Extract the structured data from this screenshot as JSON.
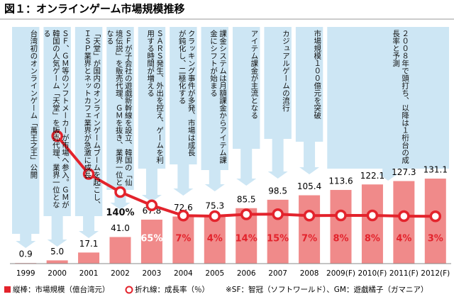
{
  "chart_data": {
    "type": "bar_line",
    "title": "図１：オンラインゲーム市場規模推移",
    "categories": [
      "1999",
      "2000",
      "2001",
      "2002",
      "2003",
      "2004",
      "2005",
      "2006",
      "2007",
      "2008",
      "2009(F)",
      "2010(F)",
      "2011(F)",
      "2012(F)"
    ],
    "series": [
      {
        "name": "縦棒：市場規模（億台湾元）",
        "type": "bar",
        "color": "#f08a8a",
        "values": [
          0.9,
          5.0,
          17.1,
          41.0,
          67.8,
          72.6,
          75.3,
          85.5,
          98.5,
          105.4,
          113.6,
          122.1,
          127.3,
          131.1
        ],
        "value_labels": [
          "0.9",
          "5.0",
          "17.1",
          "41.0",
          "67.8",
          "72.6",
          "75.3",
          "85.5",
          "98.5",
          "105.4",
          "113.6",
          "122.1",
          "127.3",
          "131.1"
        ]
      },
      {
        "name": "折れ線：成長率（％）",
        "type": "line",
        "color": "#e3232c",
        "values": [
          null,
          456,
          242,
          140,
          65,
          7,
          4,
          14,
          15,
          7,
          8,
          8,
          4,
          3
        ],
        "value_labels": [
          null,
          null,
          null,
          "140%",
          "65%",
          "7%",
          "4%",
          "14%",
          "15%",
          "7%",
          "8%",
          "8%",
          "4%",
          "3%"
        ]
      }
    ],
    "annotations": [
      "台湾初のオンラインゲーム「萬王之王」公開",
      "ＳＦ、ＧＭ等のソフトメーカーが市場へ参入。ＧＭが韓国の人気ゲーム「天堂」を販売代理、業界一位となる",
      "「天堂」が国内のオンラインゲームブームを起こし、ＩＳＰ業界とネットカフェ業界が急激に成長",
      "ＳＦが子会社の遊戯新幹線を設立、韓国の「仙境伝説」を販売代理、ＧＭを抜き、業界一位となる",
      "ＳＡＲＳ発生、外出を控え、ゲームを利用する時間が増える",
      "クラッキング事件が多発、市場は成長が鈍化し、二極化する",
      "課金システムは月額課金からアイテム課金にシフトが始まる",
      "アイテム課金が主流となる",
      "カジュアルゲームの流行",
      "市場規模１００億元を突破",
      "２００８年で頭打ち、以降は１桁台の成長率と予測"
    ],
    "note": "※SF：智冠（ソフトワールド）、GM：遊戯橘子（ガマニア）"
  }
}
